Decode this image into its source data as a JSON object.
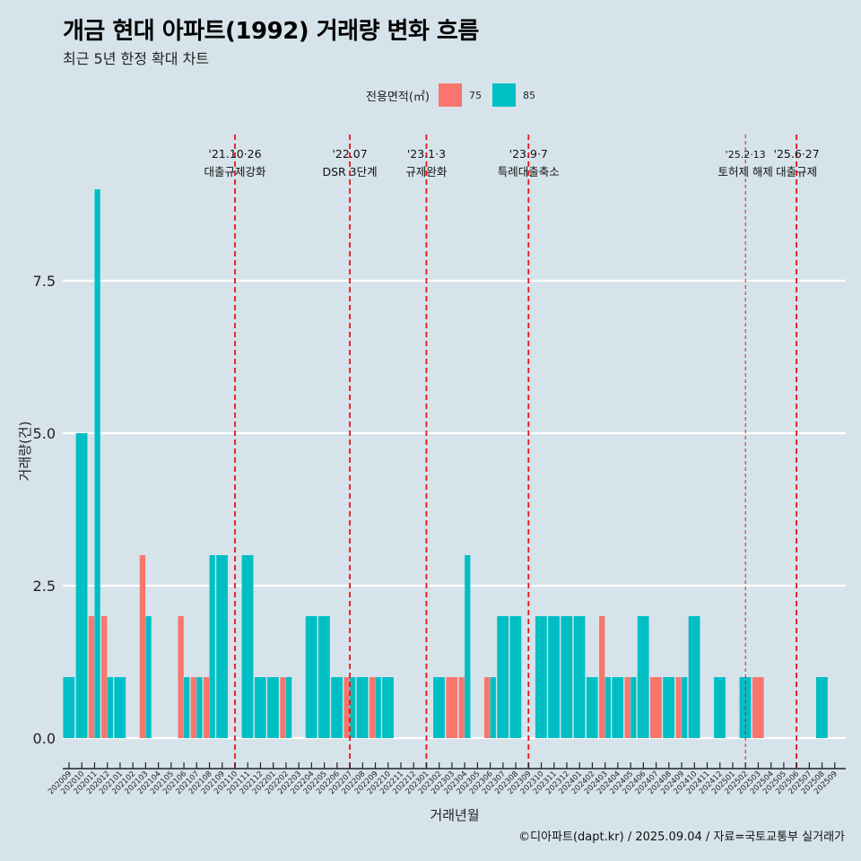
{
  "title": "개금 현대 아파트(1992) 거래량 변화 흐름",
  "subtitle": "최근 5년 한정 확대 차트",
  "legend": {
    "title": "전용면적(㎡)",
    "items": [
      {
        "label": "75",
        "color": "#f8766d"
      },
      {
        "label": "85",
        "color": "#00bfc4"
      }
    ]
  },
  "caption": "©디아파트(dapt.kr) / 2025.09.04 / 자료=국토교통부 실거래가",
  "chart_data": {
    "type": "bar",
    "stacking": "dodge",
    "title": "개금 현대 아파트(1992) 거래량 변화 흐름",
    "subtitle": "최근 5년 한정 확대 차트",
    "xlabel": "거래년월",
    "ylabel": "거래량(건)",
    "ylim": [
      0,
      9
    ],
    "yticks": [
      0.0,
      2.5,
      5.0,
      7.5
    ],
    "ytick_labels": [
      "0.0",
      "2.5",
      "5.0",
      "7.5"
    ],
    "grid": "horizontal",
    "legend_position": "top",
    "categories": [
      "202009",
      "202010",
      "202011",
      "202012",
      "202101",
      "202102",
      "202103",
      "202104",
      "202105",
      "202106",
      "202107",
      "202108",
      "202109",
      "202110",
      "202111",
      "202112",
      "202201",
      "202202",
      "202203",
      "202204",
      "202205",
      "202206",
      "202207",
      "202208",
      "202209",
      "202210",
      "202211",
      "202212",
      "202301",
      "202302",
      "202303",
      "202304",
      "202305",
      "202306",
      "202307",
      "202308",
      "202309",
      "202310",
      "202311",
      "202312",
      "202401",
      "202402",
      "202403",
      "202404",
      "202405",
      "202406",
      "202407",
      "202408",
      "202409",
      "202410",
      "202411",
      "202412",
      "202501",
      "202502",
      "202503",
      "202504",
      "202505",
      "202506",
      "202507",
      "202508",
      "202509"
    ],
    "series": [
      {
        "name": "75",
        "color": "#f8766d",
        "values": [
          0,
          0,
          2,
          2,
          0,
          0,
          3,
          0,
          0,
          2,
          1,
          1,
          0,
          0,
          0,
          0,
          0,
          1,
          0,
          0,
          0,
          0,
          1,
          0,
          1,
          0,
          0,
          0,
          0,
          0,
          1,
          1,
          0,
          1,
          0,
          0,
          0,
          0,
          0,
          0,
          0,
          0,
          2,
          0,
          1,
          0,
          1,
          0,
          1,
          0,
          0,
          0,
          0,
          0,
          1,
          0,
          0,
          0,
          0,
          0,
          0
        ]
      },
      {
        "name": "85",
        "color": "#00bfc4",
        "values": [
          1,
          5,
          9,
          1,
          1,
          0,
          2,
          0,
          0,
          1,
          1,
          3,
          3,
          0,
          3,
          1,
          1,
          1,
          0,
          2,
          2,
          1,
          1,
          1,
          1,
          1,
          0,
          0,
          0,
          1,
          0,
          3,
          0,
          1,
          2,
          2,
          0,
          2,
          2,
          2,
          2,
          1,
          1,
          1,
          1,
          2,
          0,
          1,
          1,
          2,
          0,
          1,
          0,
          1,
          0,
          0,
          0,
          0,
          0,
          1,
          0
        ]
      }
    ],
    "annotations": [
      {
        "month": "202110",
        "date": "'21.10·26",
        "text": "대출규제강화",
        "style": "thick"
      },
      {
        "month": "202207",
        "date": "'22.07",
        "text": "DSR 3단계",
        "style": "thick"
      },
      {
        "month": "202301",
        "date": "'23.1·3",
        "text": "규제완화",
        "style": "thick"
      },
      {
        "month": "202309",
        "date": "'23.9·7",
        "text": "특례대출축소",
        "style": "thick"
      },
      {
        "month": "202502",
        "date": "'25.2·13",
        "text": "토허제 해제",
        "style": "thin"
      },
      {
        "month": "202506",
        "date": "'25.6·27",
        "text": "대출규제",
        "style": "thick"
      }
    ]
  }
}
